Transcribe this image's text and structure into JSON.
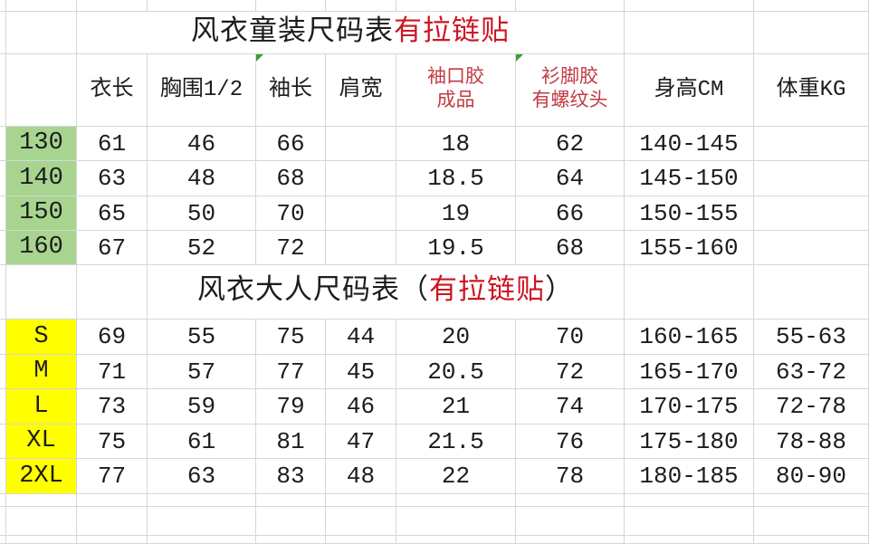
{
  "palette": {
    "green": "#a7d58f",
    "yellow": "#ffff00",
    "title-red": "#cc1622",
    "header-red": "#c23a44",
    "grid": "#d6d6d6",
    "ink": "#1c1c1c",
    "bg": "#ffffff",
    "marker": "#3f9c35"
  },
  "kids_table": {
    "title": {
      "black": "风衣童装尺码表",
      "red": "有拉链贴"
    },
    "rows": [
      {
        "size": "130",
        "cells": [
          "61",
          "46",
          "66",
          "",
          "18",
          "62",
          "140-145",
          ""
        ]
      },
      {
        "size": "140",
        "cells": [
          "63",
          "48",
          "68",
          "",
          "18.5",
          "64",
          "145-150",
          ""
        ]
      },
      {
        "size": "150",
        "cells": [
          "65",
          "50",
          "70",
          "",
          "19",
          "66",
          "150-155",
          ""
        ]
      },
      {
        "size": "160",
        "cells": [
          "67",
          "52",
          "72",
          "",
          "19.5",
          "68",
          "155-160",
          ""
        ]
      }
    ]
  },
  "header": {
    "cols": [
      {
        "label": "衣长"
      },
      {
        "label": "胸围1/2"
      },
      {
        "label": "袖长"
      },
      {
        "label": "肩宽"
      },
      {
        "line1": "袖口胶",
        "line2": "成品"
      },
      {
        "line1": "衫脚胶",
        "line2": "有螺纹头"
      },
      {
        "label": "身高CM"
      },
      {
        "label": "体重KG"
      }
    ]
  },
  "adults_table": {
    "title": {
      "black_open": "风衣大人尺码表（",
      "red": "有拉链贴",
      "black_close": "）"
    },
    "rows": [
      {
        "size": "S",
        "cells": [
          "69",
          "55",
          "75",
          "44",
          "20",
          "70",
          "160-165",
          "55-63"
        ]
      },
      {
        "size": "M",
        "cells": [
          "71",
          "57",
          "77",
          "45",
          "20.5",
          "72",
          "165-170",
          "63-72"
        ]
      },
      {
        "size": "L",
        "cells": [
          "73",
          "59",
          "79",
          "46",
          "21",
          "74",
          "170-175",
          "72-78"
        ]
      },
      {
        "size": "XL",
        "cells": [
          "75",
          "61",
          "81",
          "47",
          "21.5",
          "76",
          "175-180",
          "78-88"
        ]
      },
      {
        "size": "2XL",
        "cells": [
          "77",
          "63",
          "83",
          "48",
          "22",
          "78",
          "180-185",
          "80-90"
        ]
      }
    ]
  }
}
